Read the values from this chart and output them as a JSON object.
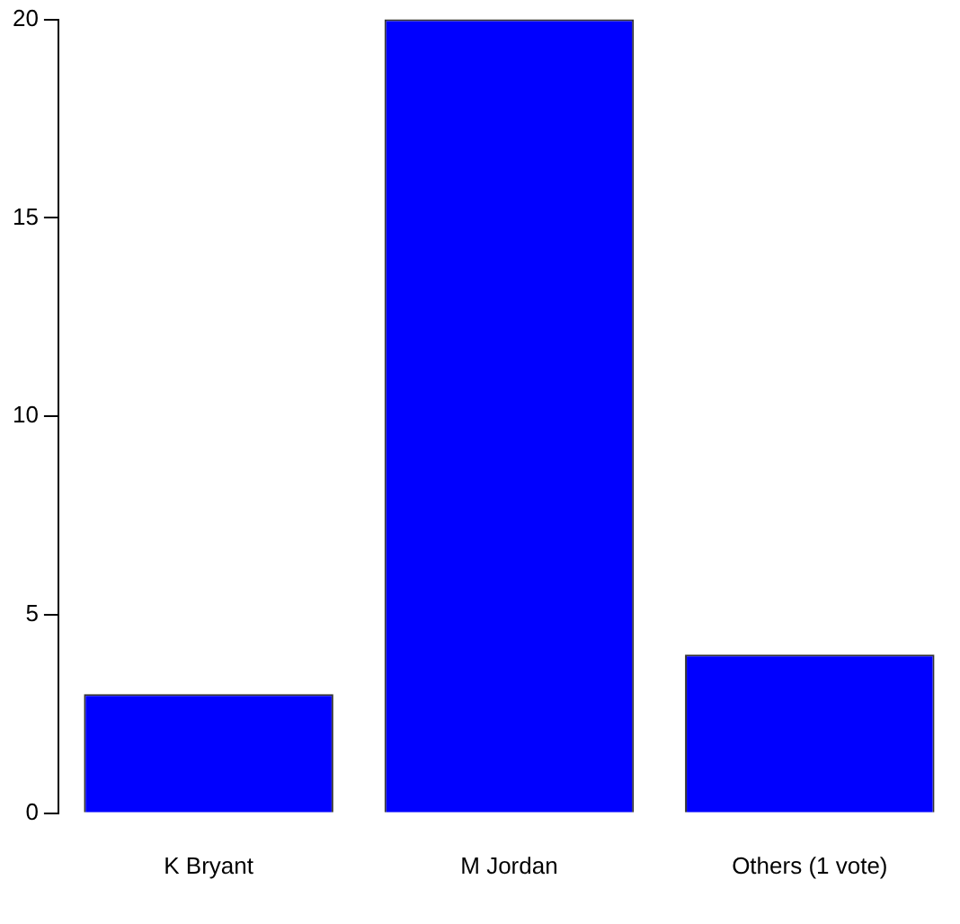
{
  "chart_data": {
    "type": "bar",
    "categories": [
      "K Bryant",
      "M Jordan",
      "Others (1 vote)"
    ],
    "values": [
      3,
      20,
      4
    ],
    "color": "#0000ff",
    "ylim": [
      0,
      20
    ],
    "yticks": [
      0,
      5,
      10,
      15,
      20
    ],
    "grid": false
  }
}
